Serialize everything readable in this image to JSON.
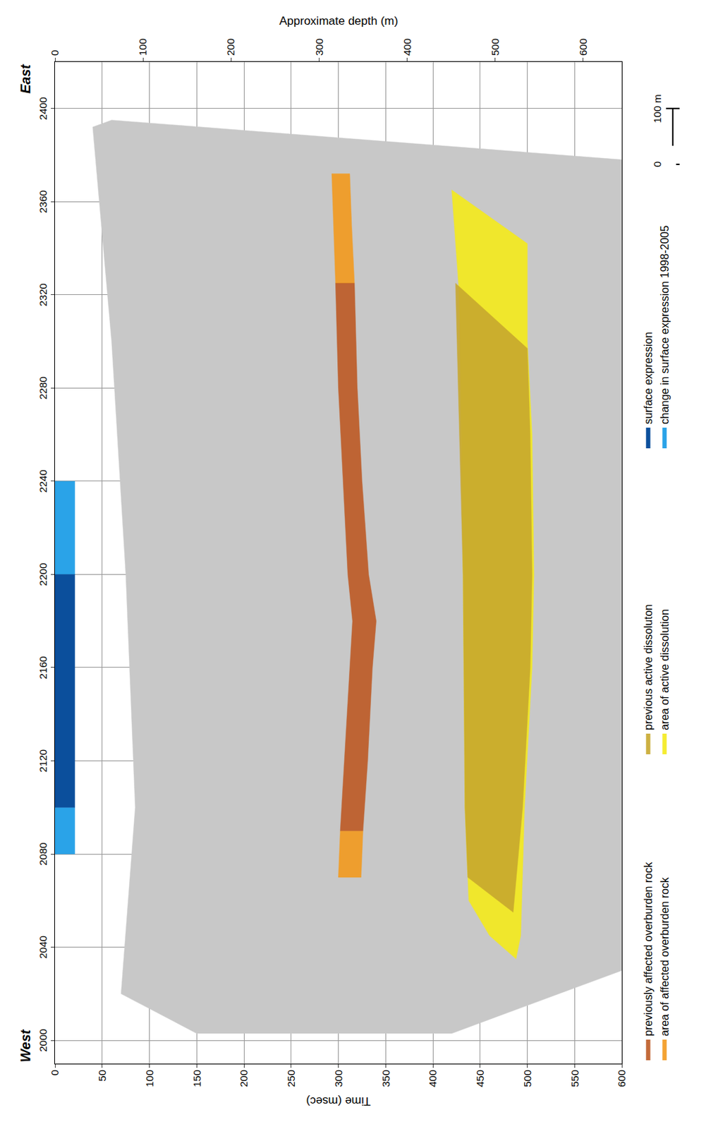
{
  "chart_data": {
    "type": "seismic_section",
    "x_end_labels": {
      "left": "West",
      "right": "East"
    },
    "xlim": [
      1990,
      2420
    ],
    "xticks": [
      2000,
      2040,
      2080,
      2120,
      2160,
      2200,
      2240,
      2280,
      2320,
      2360,
      2400
    ],
    "y_label": "Time (msec)",
    "ylim": [
      0,
      600
    ],
    "yticks": [
      0,
      50,
      100,
      150,
      200,
      250,
      300,
      350,
      400,
      450,
      500,
      550,
      600
    ],
    "y2_label": "Approximate depth (m)",
    "y2lim": [
      0,
      644
    ],
    "y2ticks": [
      0,
      100,
      200,
      300,
      400,
      500,
      600
    ],
    "grid": true,
    "legend": "bottom",
    "section_extent": {
      "color": "#c8c8c8",
      "x": [
        2003,
        2020,
        2100,
        2200,
        2300,
        2392,
        2395,
        2378,
        2030,
        2003,
        2003
      ],
      "values": [
        150,
        70,
        85,
        75,
        60,
        40,
        60,
        600,
        600,
        420,
        150
      ]
    },
    "series": [
      {
        "name": "previously affected overburden rock",
        "type": "area",
        "color": "#bd5a24",
        "x": [
          2325,
          2280,
          2240,
          2200,
          2180,
          2160,
          2120,
          2090,
          2090,
          2120,
          2160,
          2180,
          2200,
          2240,
          2280,
          2325,
          2325
        ],
        "values": [
          297,
          300,
          305,
          310,
          315,
          312,
          306,
          302,
          326,
          331,
          336,
          340,
          332,
          325,
          320,
          317,
          297
        ]
      },
      {
        "name": "area of affected overburden rock",
        "type": "area",
        "color": "#f39a1e",
        "x": [
          2372,
          2350,
          2325,
          2325,
          2350,
          2372,
          2372,
          null,
          2090,
          2070,
          2070,
          2090,
          2090
        ],
        "values": [
          293,
          295,
          297,
          317,
          314,
          312,
          293,
          null,
          302,
          300,
          324,
          326,
          302
        ]
      },
      {
        "name": "previous active dissoluton",
        "type": "area",
        "color": "#c8a82e",
        "x": [
          2325,
          2200,
          2100,
          2070,
          2055,
          2100,
          2160,
          2200,
          2260,
          2297,
          2325
        ],
        "values": [
          424,
          432,
          434,
          437,
          485,
          495,
          503,
          505,
          503,
          500,
          424
        ]
      },
      {
        "name": "area of active dissolution",
        "type": "area",
        "color": "#f5eb1c",
        "x": [
          2365,
          2320,
          2200,
          2100,
          2060,
          2045,
          2035,
          2045,
          2100,
          2160,
          2200,
          2260,
          2300,
          2342,
          2365
        ],
        "values": [
          420,
          428,
          432,
          434,
          438,
          460,
          488,
          493,
          497,
          505,
          507,
          505,
          500,
          500,
          420
        ]
      },
      {
        "name": "surface expression",
        "type": "band",
        "color": "#0b4f9c",
        "segments": [
          [
            2100,
            2200
          ]
        ]
      },
      {
        "name": "change in surface expression 1998-2005",
        "type": "band",
        "color": "#2aa3e8",
        "segments": [
          [
            2080,
            2100
          ],
          [
            2200,
            2240
          ]
        ]
      }
    ],
    "scale_bar": {
      "from": 2376,
      "to": 2400,
      "labels": [
        "0",
        "100 m"
      ]
    }
  }
}
